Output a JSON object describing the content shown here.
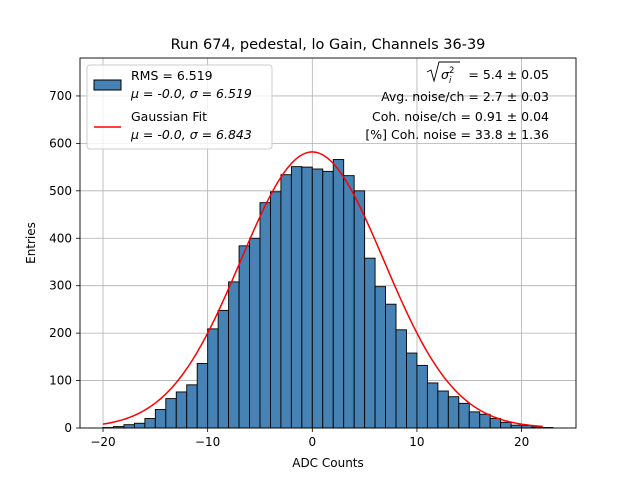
{
  "chart_data": {
    "type": "bar",
    "title": "Run 674, pedestal, lo Gain, Channels 36-39",
    "xlabel": "ADC Counts",
    "ylabel": "Entries",
    "xlim": [
      -22.2,
      25.2
    ],
    "ylim": [
      0,
      780
    ],
    "xticks": [
      -20,
      -10,
      0,
      10,
      20
    ],
    "yticks": [
      0,
      100,
      200,
      300,
      400,
      500,
      600,
      700
    ],
    "grid": true,
    "bin_width": 1,
    "bin_start": -20,
    "values": [
      1,
      3,
      7,
      10,
      20,
      39,
      62,
      76,
      91,
      136,
      209,
      248,
      308,
      384,
      400,
      475,
      498,
      534,
      551,
      550,
      546,
      541,
      566,
      532,
      500,
      358,
      298,
      261,
      207,
      158,
      132,
      95,
      78,
      66,
      52,
      34,
      29,
      20,
      12,
      6,
      5,
      2,
      1
    ],
    "fit": {
      "name": "Gaussian Fit",
      "mu": 0.0,
      "sigma": 6.843,
      "amplitude": 582,
      "x_range": [
        -20,
        22
      ]
    },
    "legend": {
      "placement": "top-left",
      "entries": [
        {
          "line1": "RMS = 6.519",
          "line2": "μ = -0.0, σ = 6.519",
          "kind": "patch"
        },
        {
          "line1": "Gaussian Fit",
          "line2": "μ = -0.0, σ = 6.843",
          "kind": "line"
        }
      ]
    },
    "annotations": {
      "sigma_prefix": "σ",
      "sigma_sub": "i",
      "sigma_sup": "2",
      "sigma_value": " = 5.4 ± 0.05",
      "avg_noise": "Avg. noise/ch = 2.7 ± 0.03",
      "coh_noise": "Coh. noise/ch = 0.91 ± 0.04",
      "coh_pct": "[%] Coh. noise = 33.8 ± 1.36"
    },
    "colors": {
      "bar_fill": "#4682b4",
      "bar_edge": "#000000",
      "fit_line": "#ff0000",
      "grid": "#b0b0b0"
    }
  }
}
